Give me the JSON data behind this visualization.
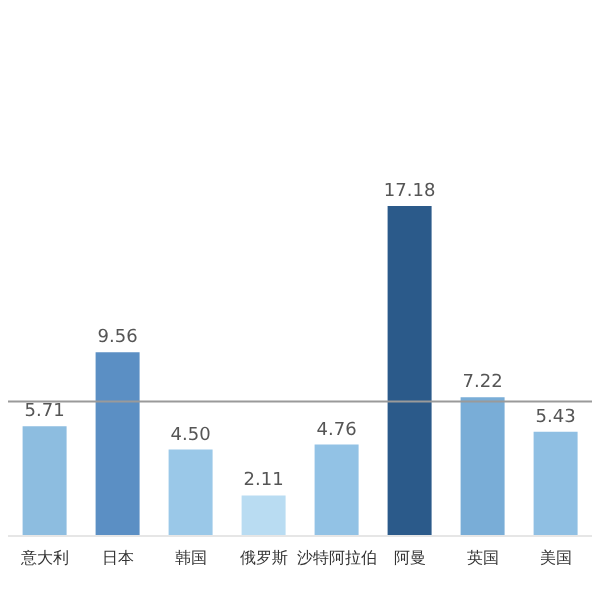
{
  "chart_data": {
    "type": "bar",
    "categories": [
      "意大利",
      "日本",
      "韩国",
      "俄罗斯",
      "沙特阿拉伯",
      "阿曼",
      "英国",
      "美国"
    ],
    "values": [
      5.71,
      9.56,
      4.5,
      2.11,
      4.76,
      17.18,
      7.22,
      5.43
    ],
    "value_labels": [
      "5.71",
      "9.56",
      "4.50",
      "2.11",
      "4.76",
      "17.18",
      "7.22",
      "5.43"
    ],
    "colors": [
      "#8dbde0",
      "#5b8fc4",
      "#9ac8e8",
      "#b9dcf2",
      "#92c2e5",
      "#2b5a8a",
      "#79add7",
      "#8fbfe3"
    ],
    "tick_labels": "x",
    "ref_lines": [
      {
        "axis": "y",
        "value": 7,
        "color": "#9a9a9a"
      }
    ]
  }
}
